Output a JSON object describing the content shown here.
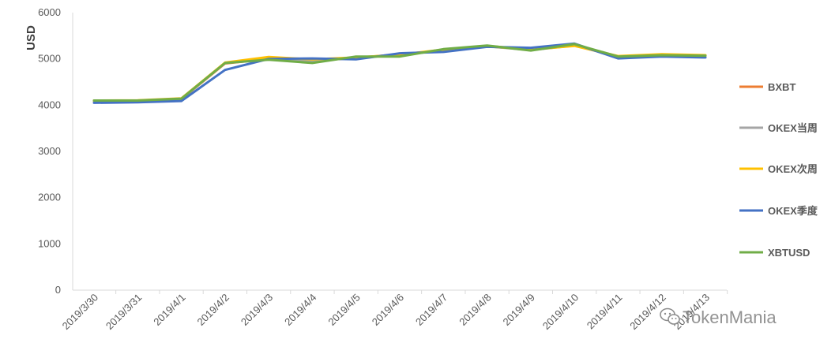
{
  "watermark": {
    "text": "TokenMania",
    "icon": "wechat-icon"
  },
  "chart_data": {
    "type": "line",
    "title": "",
    "xlabel": "",
    "ylabel": "USD",
    "ylim": [
      0,
      6000
    ],
    "yticks": [
      0,
      1000,
      2000,
      3000,
      4000,
      5000,
      6000
    ],
    "grid": false,
    "legend_position": "right",
    "categories": [
      "2019/3/30",
      "2019/3/31",
      "2019/4/1",
      "2019/4/2",
      "2019/4/3",
      "2019/4/4",
      "2019/4/5",
      "2019/4/6",
      "2019/4/7",
      "2019/4/8",
      "2019/4/9",
      "2019/4/10",
      "2019/4/11",
      "2019/4/12",
      "2019/4/13"
    ],
    "series": [
      {
        "name": "BXBT",
        "color": "#ED7D31",
        "values": [
          4090,
          4095,
          4130,
          4900,
          5000,
          4960,
          5020,
          5100,
          5180,
          5280,
          5200,
          5300,
          5040,
          5080,
          5070
        ]
      },
      {
        "name": "OKEX当周",
        "color": "#A5A5A5",
        "values": [
          4095,
          4100,
          4135,
          4910,
          5010,
          4950,
          5030,
          5080,
          5190,
          5270,
          5190,
          5290,
          5050,
          5090,
          5070
        ]
      },
      {
        "name": "OKEX次周",
        "color": "#FFC000",
        "values": [
          4100,
          4105,
          4145,
          4920,
          5040,
          4990,
          5030,
          5090,
          5200,
          5270,
          5200,
          5280,
          5060,
          5100,
          5080
        ]
      },
      {
        "name": "OKEX季度",
        "color": "#4472C4",
        "values": [
          4050,
          4060,
          4090,
          4760,
          5000,
          5010,
          4990,
          5120,
          5150,
          5260,
          5240,
          5330,
          5010,
          5050,
          5030
        ]
      },
      {
        "name": "XBTUSD",
        "color": "#70AD47",
        "values": [
          4100,
          4100,
          4140,
          4910,
          4980,
          4910,
          5050,
          5050,
          5210,
          5290,
          5180,
          5320,
          5050,
          5080,
          5070
        ]
      }
    ]
  }
}
